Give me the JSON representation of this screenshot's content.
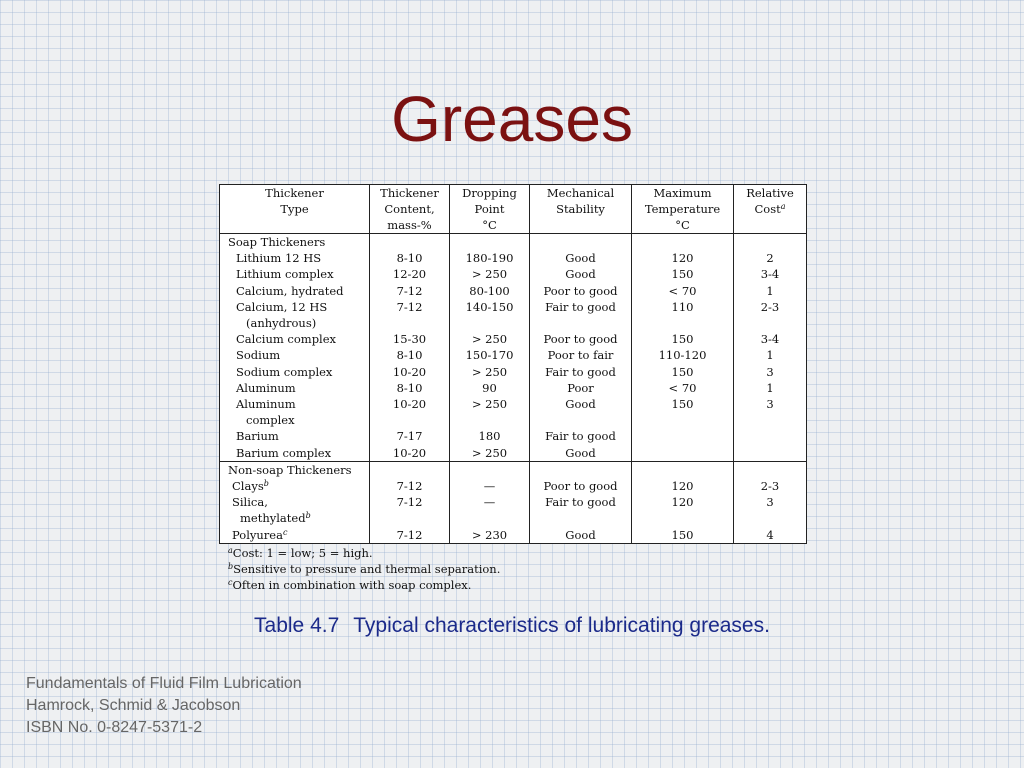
{
  "slide": {
    "title": "Greases",
    "caption_label": "Table 4.7",
    "caption_text": "Typical characteristics of lubricating greases.",
    "credits": [
      "Fundamentals of Fluid Film Lubrication",
      "Hamrock, Schmid & Jacobson",
      "ISBN No. 0-8247-5371-2"
    ]
  },
  "table": {
    "headers": [
      [
        "Thickener",
        "Type",
        ""
      ],
      [
        "Thickener",
        "Content,",
        "mass-%"
      ],
      [
        "Dropping",
        "Point",
        "°C"
      ],
      [
        "Mechanical",
        "Stability",
        ""
      ],
      [
        "Maximum",
        "Temperature",
        "°C"
      ],
      [
        "Relative",
        "Cost",
        ""
      ]
    ],
    "cost_marker": "a",
    "group1": {
      "label": "Soap Thickeners",
      "rows": [
        {
          "name": "Lithium 12 HS",
          "content": "8-10",
          "dropping": "180-190",
          "stability": "Good",
          "maxtemp": "120",
          "cost": "2"
        },
        {
          "name": "Lithium complex",
          "content": "12-20",
          "dropping": "> 250",
          "stability": "Good",
          "maxtemp": "150",
          "cost": "3-4"
        },
        {
          "name": "Calcium, hydrated",
          "content": "7-12",
          "dropping": "80-100",
          "stability": "Poor to good",
          "maxtemp": "< 70",
          "cost": "1"
        },
        {
          "name": "Calcium, 12 HS",
          "content": "7-12",
          "dropping": "140-150",
          "stability": "Fair to good",
          "maxtemp": "110",
          "cost": "2-3"
        },
        {
          "name": "(anhydrous)",
          "content": "",
          "dropping": "",
          "stability": "",
          "maxtemp": "",
          "cost": ""
        },
        {
          "name": "Calcium complex",
          "content": "15-30",
          "dropping": "> 250",
          "stability": "Poor to good",
          "maxtemp": "150",
          "cost": "3-4"
        },
        {
          "name": "Sodium",
          "content": "8-10",
          "dropping": "150-170",
          "stability": "Poor to fair",
          "maxtemp": "110-120",
          "cost": "1"
        },
        {
          "name": "Sodium complex",
          "content": "10-20",
          "dropping": "> 250",
          "stability": "Fair to good",
          "maxtemp": "150",
          "cost": "3"
        },
        {
          "name": "Aluminum",
          "content": "8-10",
          "dropping": "90",
          "stability": "Poor",
          "maxtemp": "< 70",
          "cost": "1"
        },
        {
          "name": "Aluminum",
          "content": "10-20",
          "dropping": "> 250",
          "stability": "Good",
          "maxtemp": "150",
          "cost": "3"
        },
        {
          "name": "complex",
          "content": "",
          "dropping": "",
          "stability": "",
          "maxtemp": "",
          "cost": ""
        },
        {
          "name": "Barium",
          "content": "7-17",
          "dropping": "180",
          "stability": "Fair to good",
          "maxtemp": "",
          "cost": ""
        },
        {
          "name": "Barium complex",
          "content": "10-20",
          "dropping": "> 250",
          "stability": "Good",
          "maxtemp": "",
          "cost": ""
        }
      ]
    },
    "group2": {
      "label": "Non-soap Thickeners",
      "rows": [
        {
          "name": "Clays",
          "sup": "b",
          "content": "7-12",
          "dropping": "—",
          "stability": "Poor to good",
          "maxtemp": "120",
          "cost": "2-3"
        },
        {
          "name": "Silica,",
          "sup": "",
          "content": "7-12",
          "dropping": "—",
          "stability": "Fair to good",
          "maxtemp": "120",
          "cost": "3"
        },
        {
          "name": "methylated",
          "sup": "b",
          "content": "",
          "dropping": "",
          "stability": "",
          "maxtemp": "",
          "cost": ""
        },
        {
          "name": "Polyurea",
          "sup": "c",
          "content": "7-12",
          "dropping": "> 230",
          "stability": "Good",
          "maxtemp": "150",
          "cost": "4"
        }
      ]
    },
    "footnotes": [
      {
        "mark": "a",
        "text": "Cost: 1 = low; 5 = high."
      },
      {
        "mark": "b",
        "text": "Sensitive to pressure and thermal separation."
      },
      {
        "mark": "c",
        "text": "Often in combination with soap complex."
      }
    ]
  }
}
